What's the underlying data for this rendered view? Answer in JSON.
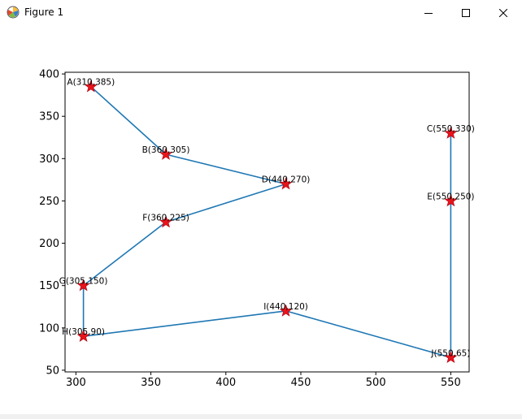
{
  "window": {
    "title": "Figure 1",
    "icon": "matplotlib-icon",
    "controls": [
      "minimize-icon",
      "maximize-icon",
      "close-icon"
    ]
  },
  "chart_data": {
    "type": "line",
    "title": "",
    "xlabel": "",
    "ylabel": "",
    "xlim": [
      292.75,
      562.25
    ],
    "ylim": [
      48.0,
      402.0
    ],
    "xticks": [
      300,
      350,
      400,
      450,
      500,
      550
    ],
    "yticks": [
      50,
      100,
      150,
      200,
      250,
      300,
      350,
      400
    ],
    "grid": false,
    "line_color": "#1f77b4",
    "marker": "star",
    "marker_color": "#e8141b",
    "points": [
      {
        "name": "A",
        "x": 310,
        "y": 385,
        "label": "A(310,385)"
      },
      {
        "name": "B",
        "x": 360,
        "y": 305,
        "label": "B(360,305)"
      },
      {
        "name": "D",
        "x": 440,
        "y": 270,
        "label": "D(440,270)"
      },
      {
        "name": "F",
        "x": 360,
        "y": 225,
        "label": "F(360,225)"
      },
      {
        "name": "G",
        "x": 305,
        "y": 150,
        "label": "G(305,150)"
      },
      {
        "name": "H",
        "x": 305,
        "y": 90,
        "label": "H(305,90)"
      },
      {
        "name": "I",
        "x": 440,
        "y": 120,
        "label": "I(440,120)"
      },
      {
        "name": "J",
        "x": 550,
        "y": 65,
        "label": "J(550,65)"
      },
      {
        "name": "E",
        "x": 550,
        "y": 250,
        "label": "E(550,250)"
      },
      {
        "name": "C",
        "x": 550,
        "y": 330,
        "label": "C(550,330)"
      }
    ]
  }
}
